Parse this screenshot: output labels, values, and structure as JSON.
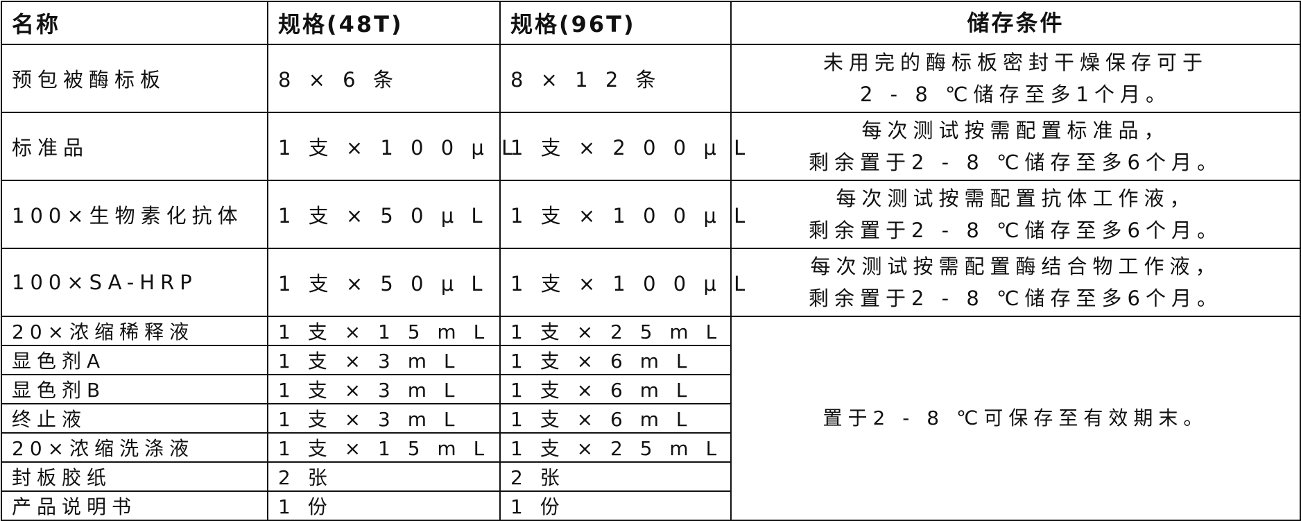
{
  "headers": [
    "名称",
    "规格(48T)",
    "规格(96T)",
    "储存条件"
  ],
  "rows": [
    {
      "name": "预包被酶标板",
      "spec48": "8 × 6 条",
      "spec96": "8 × 1 2 条",
      "storage": [
        "未用完的酶标板密封干燥保存可于",
        "2 - 8 ℃储存至多1个月。"
      ]
    },
    {
      "name": "标准品",
      "spec48": "1 支 × 1 0 0 μ L",
      "spec96": "1 支 × 2 0 0 μ L",
      "storage": [
        "每次测试按需配置标准品，",
        "剩余置于2 - 8 ℃储存至多6个月。"
      ]
    },
    {
      "name": "100×生物素化抗体",
      "spec48": "1 支 × 5 0 μ L",
      "spec96": "1 支 × 1 0 0 μ L",
      "storage": [
        "每次测试按需配置抗体工作液，",
        "剩余置于2 - 8 ℃储存至多6个月。"
      ]
    },
    {
      "name": "100×SA-HRP",
      "spec48": "1 支 × 5 0 μ L",
      "spec96": "1 支 × 1 0 0 μ L",
      "storage": [
        "每次测试按需配置酶结合物工作液，",
        "剩余置于2 - 8 ℃储存至多6个月。"
      ]
    },
    {
      "name": "20×浓缩稀释液",
      "spec48": "1 支 × 1 5 m L",
      "spec96": "1 支 × 2 5 m L"
    },
    {
      "name": "显色剂A",
      "spec48": "1 支 × 3 m L",
      "spec96": "1 支 × 6 m L"
    },
    {
      "name": "显色剂B",
      "spec48": "1 支 × 3 m L",
      "spec96": "1 支 × 6 m L"
    },
    {
      "name": "终止液",
      "spec48": "1 支 × 3 m L",
      "spec96": "1 支 × 6 m L"
    },
    {
      "name": "20×浓缩洗涤液",
      "spec48": "1 支 × 1 5 m L",
      "spec96": "1 支 × 2 5 m L"
    },
    {
      "name": "封板胶纸",
      "spec48": "2 张",
      "spec96": "2 张"
    },
    {
      "name": "产品说明书",
      "spec48": "1 份",
      "spec96": "1 份"
    }
  ],
  "shared_storage": "置于2 - 8 ℃可保存至有效期末。"
}
